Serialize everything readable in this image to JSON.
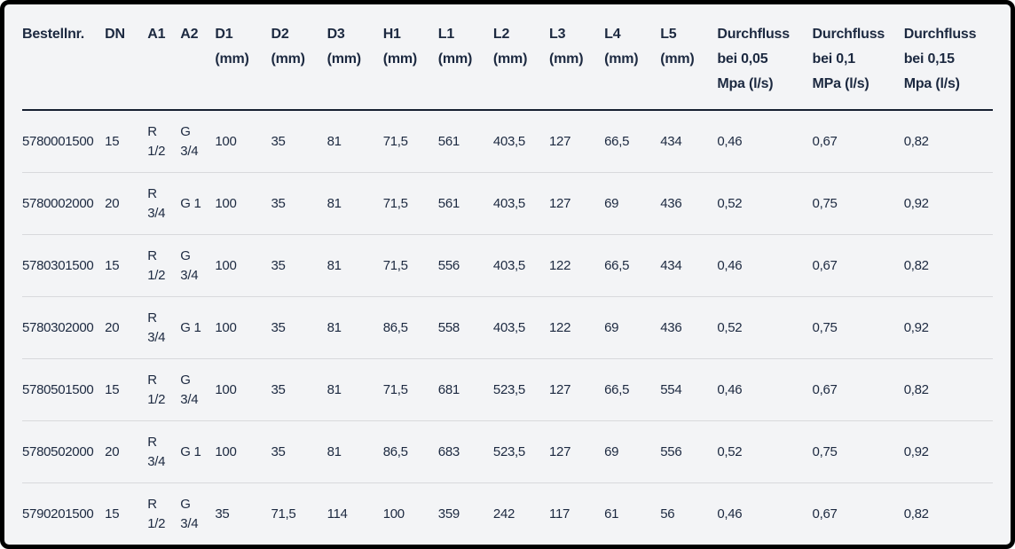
{
  "table": {
    "columns": [
      {
        "id": "bestellnr",
        "lines": [
          "Bestellnr."
        ]
      },
      {
        "id": "dn",
        "lines": [
          "DN"
        ]
      },
      {
        "id": "a1",
        "lines": [
          "A1"
        ]
      },
      {
        "id": "a2",
        "lines": [
          "A2"
        ]
      },
      {
        "id": "d1",
        "lines": [
          "D1",
          "(mm)"
        ]
      },
      {
        "id": "d2",
        "lines": [
          "D2",
          "(mm)"
        ]
      },
      {
        "id": "d3",
        "lines": [
          "D3",
          "(mm)"
        ]
      },
      {
        "id": "h1",
        "lines": [
          "H1",
          "(mm)"
        ]
      },
      {
        "id": "l1",
        "lines": [
          "L1",
          "(mm)"
        ]
      },
      {
        "id": "l2",
        "lines": [
          "L2",
          "(mm)"
        ]
      },
      {
        "id": "l3",
        "lines": [
          "L3",
          "(mm)"
        ]
      },
      {
        "id": "l4",
        "lines": [
          "L4",
          "(mm)"
        ]
      },
      {
        "id": "l5",
        "lines": [
          "L5",
          "(mm)"
        ]
      },
      {
        "id": "durchfluss-005",
        "lines": [
          "Durchfluss",
          "bei 0,05",
          "Mpa (l/s)"
        ]
      },
      {
        "id": "durchfluss-01",
        "lines": [
          "Durchfluss",
          "bei 0,1",
          "MPa (l/s)"
        ]
      },
      {
        "id": "durchfluss-015",
        "lines": [
          "Durchfluss",
          "bei 0,15",
          "Mpa (l/s)"
        ]
      }
    ],
    "rows": [
      [
        "5780001500",
        "15",
        "R 1/2",
        "G 3/4",
        "100",
        "35",
        "81",
        "71,5",
        "561",
        "403,5",
        "127",
        "66,5",
        "434",
        "0,46",
        "0,67",
        "0,82"
      ],
      [
        "5780002000",
        "20",
        "R 3/4",
        "G 1",
        "100",
        "35",
        "81",
        "71,5",
        "561",
        "403,5",
        "127",
        "69",
        "436",
        "0,52",
        "0,75",
        "0,92"
      ],
      [
        "5780301500",
        "15",
        "R 1/2",
        "G 3/4",
        "100",
        "35",
        "81",
        "71,5",
        "556",
        "403,5",
        "122",
        "66,5",
        "434",
        "0,46",
        "0,67",
        "0,82"
      ],
      [
        "5780302000",
        "20",
        "R 3/4",
        "G 1",
        "100",
        "35",
        "81",
        "86,5",
        "558",
        "403,5",
        "122",
        "69",
        "436",
        "0,52",
        "0,75",
        "0,92"
      ],
      [
        "5780501500",
        "15",
        "R 1/2",
        "G 3/4",
        "100",
        "35",
        "81",
        "71,5",
        "681",
        "523,5",
        "127",
        "66,5",
        "554",
        "0,46",
        "0,67",
        "0,82"
      ],
      [
        "5780502000",
        "20",
        "R 3/4",
        "G 1",
        "100",
        "35",
        "81",
        "86,5",
        "683",
        "523,5",
        "127",
        "69",
        "556",
        "0,52",
        "0,75",
        "0,92"
      ],
      [
        "5790201500",
        "15",
        "R 1/2",
        "G 3/4",
        "35",
        "71,5",
        "114",
        "100",
        "359",
        "242",
        "117",
        "61",
        "56",
        "0,46",
        "0,67",
        "0,82"
      ]
    ]
  },
  "colors": {
    "text": "#1c2940",
    "background": "#f3f4f6",
    "header_rule": "#161f30",
    "row_rule": "#d8d9dc",
    "frame": "#000000"
  }
}
